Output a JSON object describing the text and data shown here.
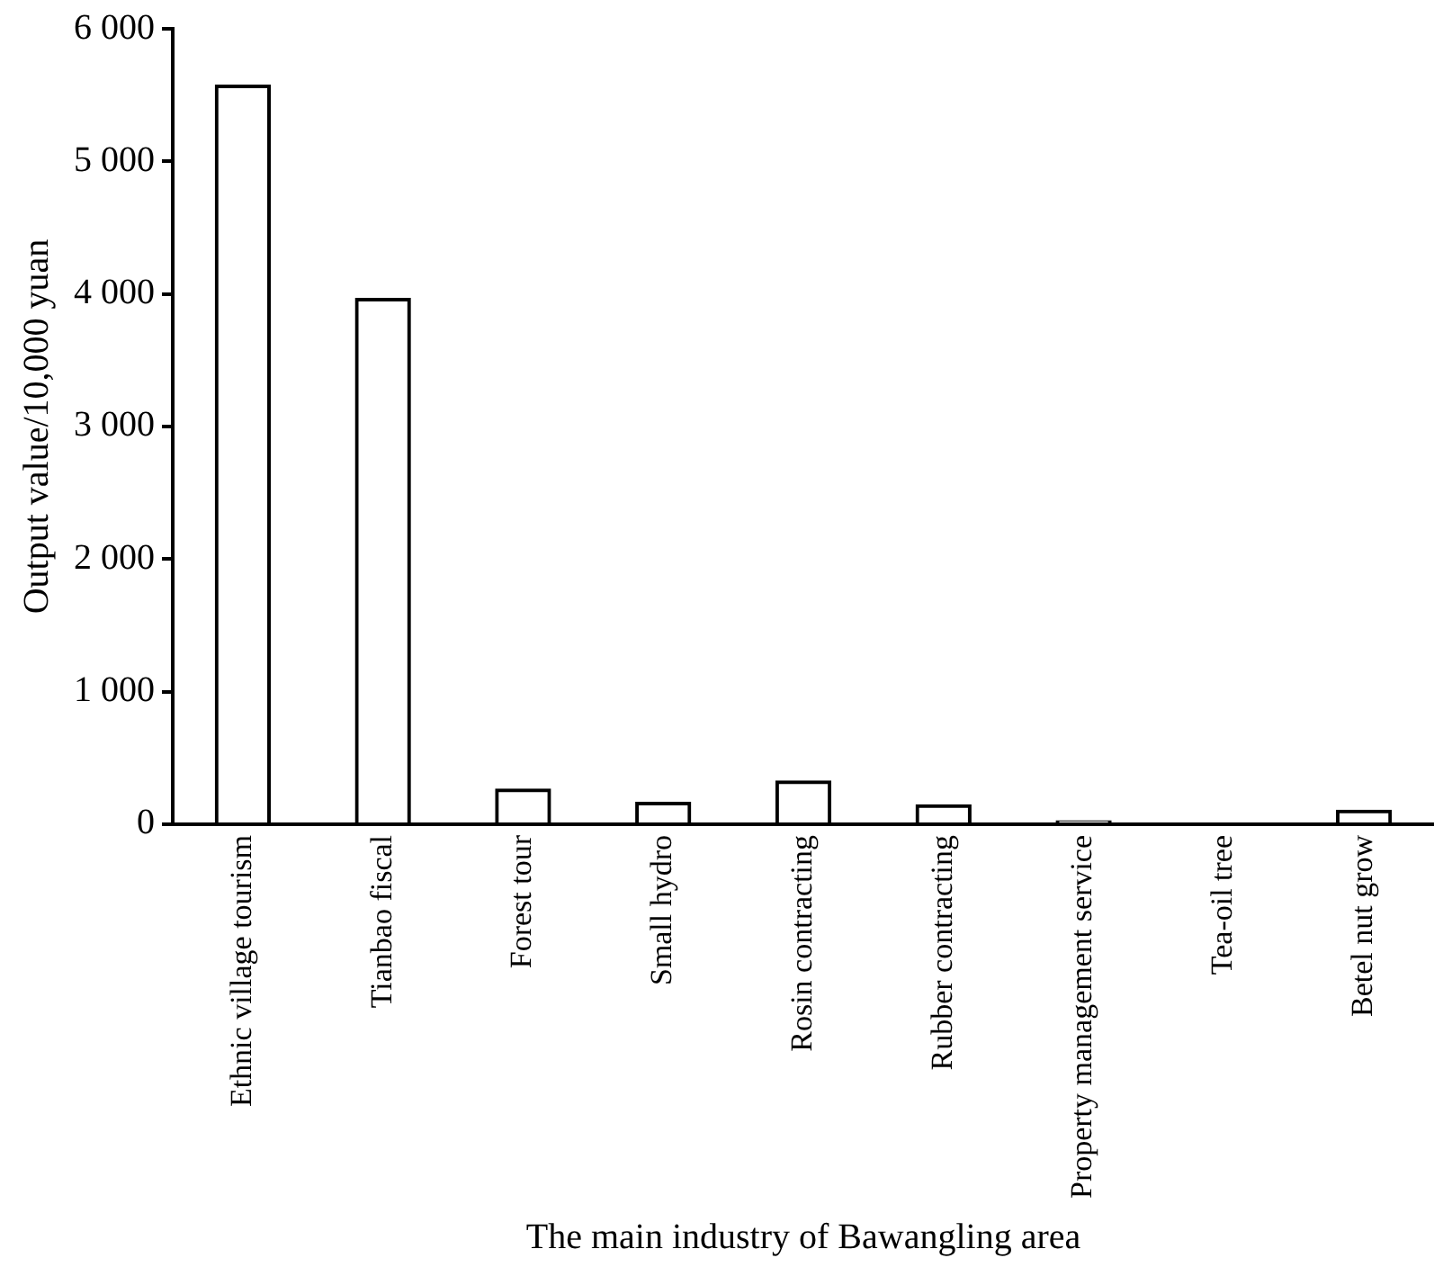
{
  "chart_data": {
    "type": "bar",
    "xlabel": "The main industry of Bawangling area",
    "ylabel": "Output value/10,000 yuan",
    "categories": [
      "Ethnic village tourism",
      "Tianbao fiscal",
      "Forest tour",
      "Small hydro",
      "Rosin contracting",
      "Rubber contracting",
      "Property management service",
      "Tea-oil tree",
      "Betel nut grow"
    ],
    "values": [
      5580,
      3970,
      270,
      170,
      330,
      150,
      30,
      0,
      110
    ],
    "color": "#000000",
    "ylim": [
      0,
      6000
    ],
    "yticks": [
      {
        "value": 0,
        "label": "0"
      },
      {
        "value": 1000,
        "label": "1 000"
      },
      {
        "value": 2000,
        "label": "2 000"
      },
      {
        "value": 3000,
        "label": "3 000"
      },
      {
        "value": 4000,
        "label": "4 000"
      },
      {
        "value": 5000,
        "label": "5 000"
      },
      {
        "value": 6000,
        "label": "6 000"
      }
    ],
    "grid": false,
    "legend": false
  }
}
